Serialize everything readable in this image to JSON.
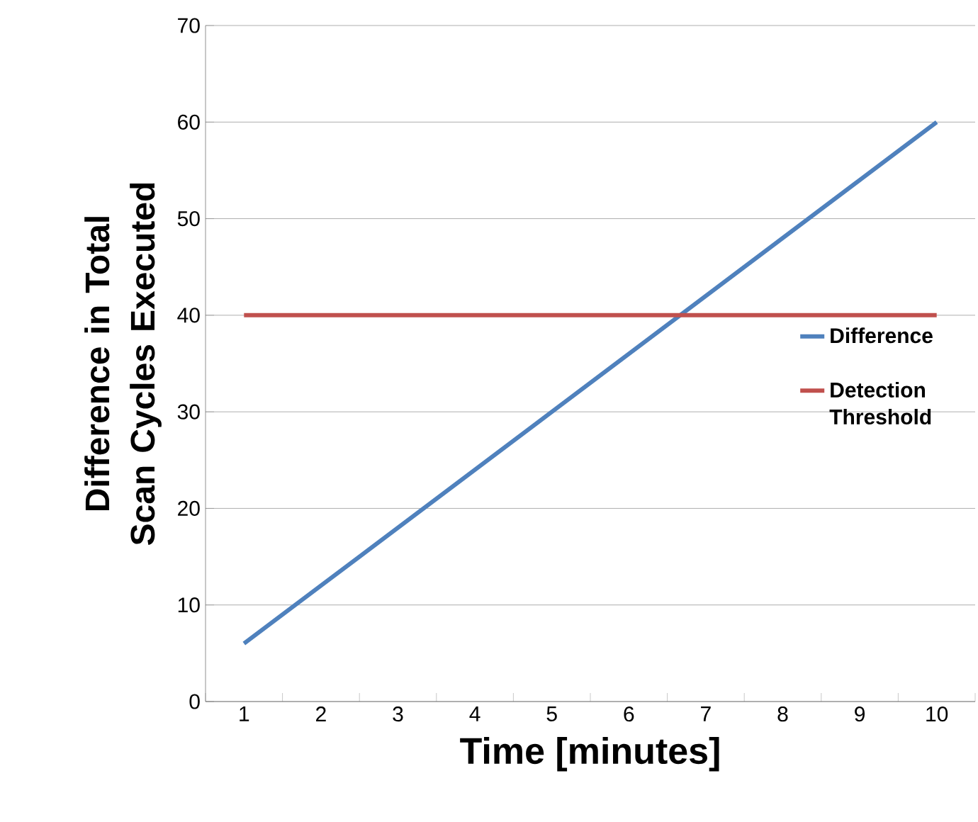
{
  "chart_data": {
    "type": "line",
    "xlabel": "Time [minutes]",
    "ylabel": "Difference in Total Scan Cycles Executed",
    "categories": [
      "1",
      "2",
      "3",
      "4",
      "5",
      "6",
      "7",
      "8",
      "9",
      "10"
    ],
    "series": [
      {
        "name": "Difference",
        "color": "#4f81bd",
        "values": [
          6,
          12,
          18,
          24,
          30,
          36,
          42,
          48,
          54,
          60
        ]
      },
      {
        "name": "Detection Threshold",
        "color": "#c0504d",
        "values": [
          40,
          40,
          40,
          40,
          40,
          40,
          40,
          40,
          40,
          40
        ]
      }
    ],
    "ylim": [
      0,
      70
    ],
    "yticks": [
      0,
      10,
      20,
      30,
      40,
      50,
      60,
      70
    ],
    "grid": "y",
    "legend": "right"
  }
}
